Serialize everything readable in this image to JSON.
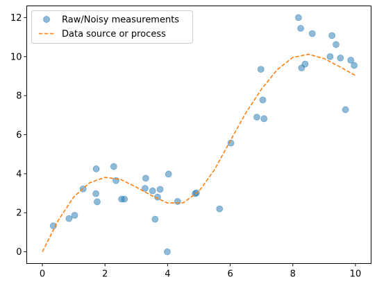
{
  "chart_data": {
    "type": "scatter",
    "title": "",
    "xlabel": "",
    "ylabel": "",
    "xlim": [
      -0.5,
      10.5
    ],
    "ylim": [
      -0.6,
      12.6
    ],
    "xticks": [
      0,
      2,
      4,
      6,
      8,
      10
    ],
    "yticks": [
      0,
      2,
      4,
      6,
      8,
      10,
      12
    ],
    "xtick_labels": [
      "0",
      "2",
      "4",
      "6",
      "8",
      "10"
    ],
    "ytick_labels": [
      "0",
      "2",
      "4",
      "6",
      "8",
      "10",
      "12"
    ],
    "grid": false,
    "legend_position": "upper-left",
    "series": [
      {
        "name": "Raw/Noisy measurements",
        "kind": "scatter",
        "color": "#1f77b4",
        "alpha": 0.5,
        "points": [
          [
            0.35,
            1.33
          ],
          [
            0.85,
            1.7
          ],
          [
            1.03,
            1.87
          ],
          [
            1.3,
            3.22
          ],
          [
            1.71,
            2.98
          ],
          [
            1.72,
            4.25
          ],
          [
            1.75,
            2.56
          ],
          [
            2.28,
            4.37
          ],
          [
            2.35,
            3.65
          ],
          [
            2.53,
            2.7
          ],
          [
            2.62,
            2.7
          ],
          [
            3.28,
            3.25
          ],
          [
            3.3,
            3.77
          ],
          [
            3.52,
            3.12
          ],
          [
            3.6,
            1.67
          ],
          [
            3.68,
            2.8
          ],
          [
            3.76,
            3.2
          ],
          [
            3.99,
            0.0
          ],
          [
            4.03,
            3.98
          ],
          [
            4.32,
            2.58
          ],
          [
            4.88,
            2.98
          ],
          [
            4.92,
            3.02
          ],
          [
            5.66,
            2.2
          ],
          [
            6.02,
            5.57
          ],
          [
            6.85,
            6.9
          ],
          [
            6.98,
            9.35
          ],
          [
            7.04,
            7.78
          ],
          [
            7.08,
            6.82
          ],
          [
            8.18,
            12.0
          ],
          [
            8.25,
            11.45
          ],
          [
            8.28,
            9.42
          ],
          [
            8.39,
            9.62
          ],
          [
            8.62,
            11.18
          ],
          [
            9.19,
            10.0
          ],
          [
            9.25,
            11.08
          ],
          [
            9.38,
            10.62
          ],
          [
            9.52,
            9.93
          ],
          [
            9.68,
            7.28
          ],
          [
            9.85,
            9.82
          ],
          [
            9.96,
            9.55
          ]
        ]
      },
      {
        "name": "Data source or process",
        "kind": "line",
        "style": "dashed",
        "color": "#ff7f0e",
        "x": [
          0.0,
          0.5,
          1.0,
          1.5,
          2.0,
          2.5,
          3.0,
          3.5,
          4.0,
          4.5,
          5.0,
          5.5,
          6.0,
          6.5,
          7.0,
          7.5,
          8.0,
          8.5,
          9.0,
          9.5,
          10.0
        ],
        "y": [
          0.0,
          1.59,
          2.81,
          3.53,
          3.81,
          3.71,
          3.31,
          2.87,
          2.5,
          2.51,
          3.1,
          4.21,
          5.68,
          7.12,
          8.34,
          9.33,
          9.96,
          10.12,
          9.9,
          9.48,
          9.03
        ]
      }
    ]
  }
}
